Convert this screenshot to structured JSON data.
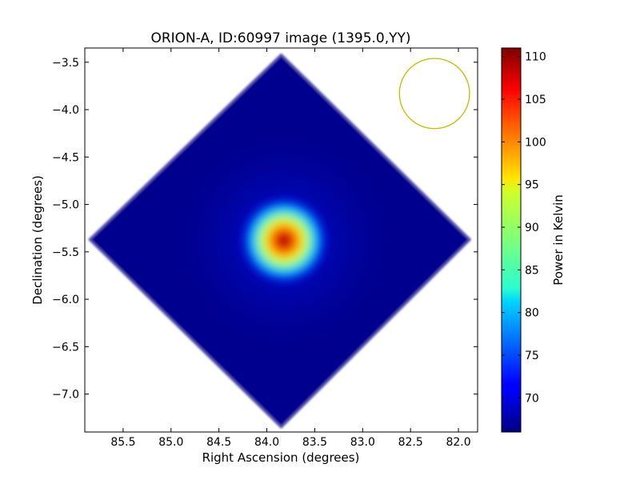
{
  "chart_data": {
    "type": "heatmap",
    "title": "ORION-A, ID:60997 image (1395.0,YY)",
    "xlabel": "Right Ascension (degrees)",
    "ylabel": "Declination (degrees)",
    "xlim": [
      85.9,
      81.8
    ],
    "ylim": [
      -7.4,
      -3.35
    ],
    "x_inverted": true,
    "xticks": [
      85.5,
      85.0,
      84.5,
      84.0,
      83.5,
      83.0,
      82.5,
      82.0
    ],
    "xtick_labels": [
      "85.5",
      "85.0",
      "84.5",
      "84.0",
      "83.5",
      "83.0",
      "82.5",
      "82.0"
    ],
    "yticks": [
      -3.5,
      -4.0,
      -4.5,
      -5.0,
      -5.5,
      -6.0,
      -6.5,
      -7.0
    ],
    "ytick_labels": [
      "−3.5",
      "−4.0",
      "−4.5",
      "−5.0",
      "−5.5",
      "−6.0",
      "−6.5",
      "−7.0"
    ],
    "colorbar": {
      "label": "Power in Kelvin",
      "range": [
        66,
        111
      ],
      "ticks": [
        70,
        75,
        80,
        85,
        90,
        95,
        100,
        105,
        110
      ],
      "tick_labels": [
        "70",
        "75",
        "80",
        "85",
        "90",
        "95",
        "100",
        "105",
        "110"
      ],
      "colormap": "jet"
    },
    "map": {
      "shape": "diamond",
      "background_value": 66,
      "peak": {
        "ra": 83.82,
        "dec": -5.38,
        "value": 111
      },
      "outline_vertices": [
        {
          "ra": 83.85,
          "dec": -3.42
        },
        {
          "ra": 81.88,
          "dec": -5.37
        },
        {
          "ra": 83.85,
          "dec": -7.35
        },
        {
          "ra": 85.85,
          "dec": -5.37
        }
      ]
    },
    "beam": {
      "ra": 82.25,
      "dec": -3.83,
      "radius_deg": 0.37,
      "color": "#bfbf00"
    },
    "grid": false,
    "legend": "none"
  }
}
